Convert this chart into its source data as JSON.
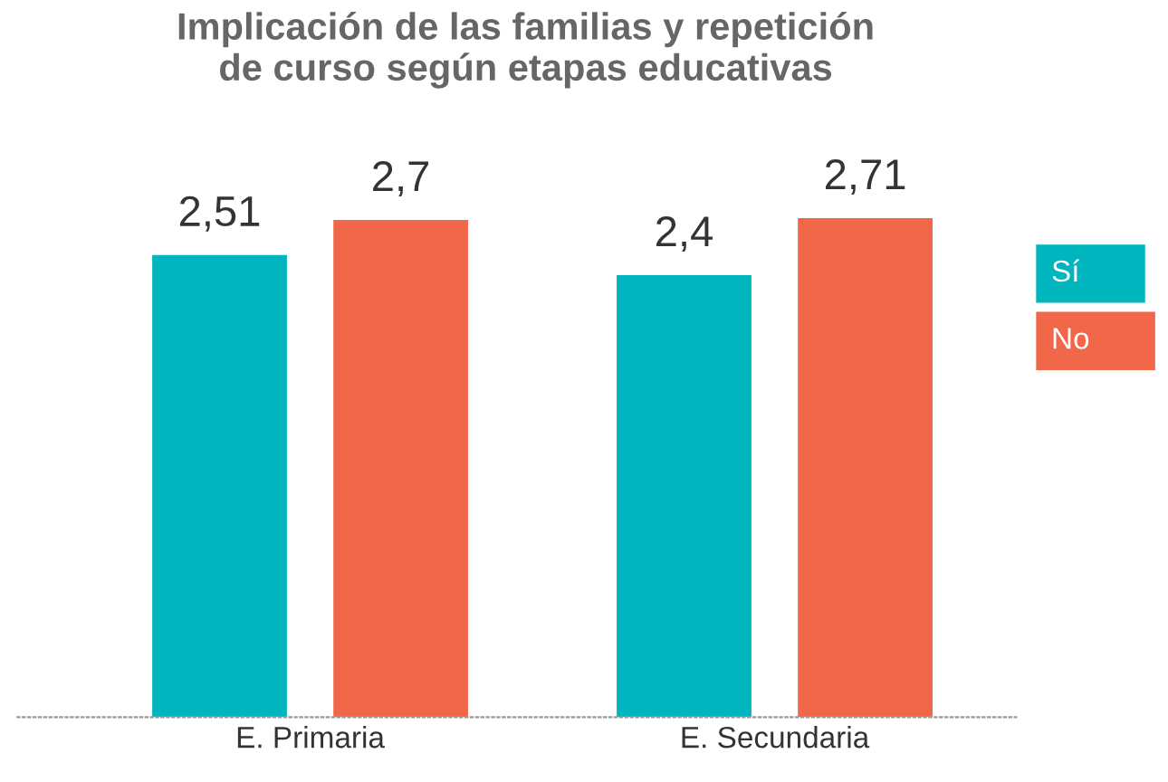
{
  "chart_data": {
    "type": "bar",
    "title": "Implicación de las familias y repetición\nde curso según etapas educativas",
    "categories": [
      "E. Primaria",
      "E. Secundaria"
    ],
    "series": [
      {
        "name": "Sí",
        "color": "#00b5bd",
        "values": [
          2.51,
          2.4
        ],
        "value_labels": [
          "2,51",
          "2,4"
        ]
      },
      {
        "name": "No",
        "color": "#f0674a",
        "values": [
          2.7,
          2.71
        ],
        "value_labels": [
          "2,7",
          "2,71"
        ]
      }
    ],
    "tick_labels": "x",
    "legend": "right"
  }
}
